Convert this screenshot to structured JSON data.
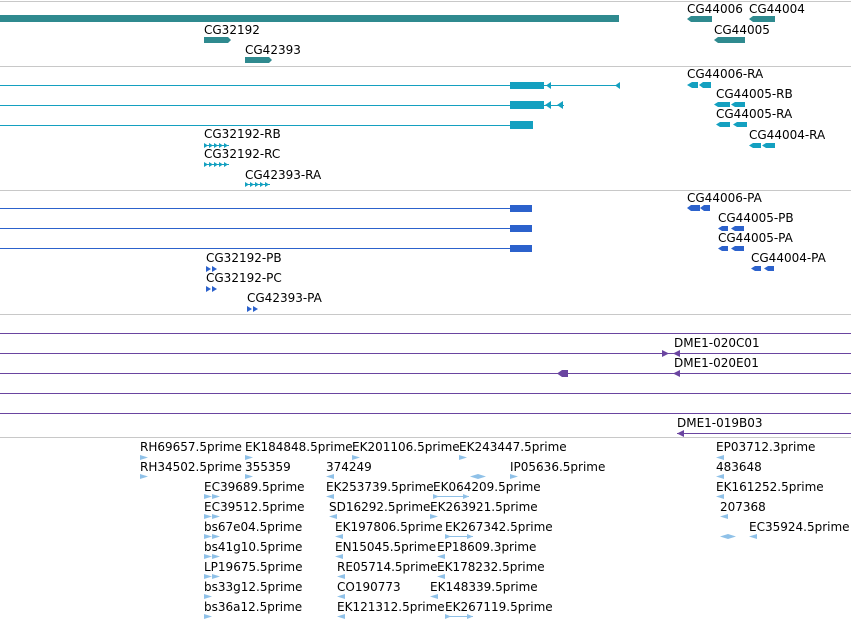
{
  "colors": {
    "gene": "#2f8a8f",
    "mrna": "#14a0c0",
    "protein": "#2c62cc",
    "clone": "#6a45a0",
    "est": "#8fc1e8",
    "separator": "#c8c8c8",
    "label": "#000000"
  },
  "tracks": {
    "genes": {
      "labels": [
        "CG32192",
        "CG42393",
        "CG44006",
        "CG44004",
        "CG44005"
      ]
    },
    "transcripts": {
      "labels": [
        "CG44006-RA",
        "CG44005-RB",
        "CG44005-RA",
        "CG44004-RA",
        "CG32192-RB",
        "CG32192-RC",
        "CG42393-RA"
      ]
    },
    "proteins": {
      "labels": [
        "CG44006-PA",
        "CG44005-PB",
        "CG44005-PA",
        "CG44004-PA",
        "CG32192-PB",
        "CG32192-PC",
        "CG42393-PA"
      ]
    },
    "clones": {
      "labels": [
        "DME1-020C01",
        "DME1-020E01",
        "DME1-019B03"
      ]
    },
    "ests": {
      "labels": [
        "RH69657.5prime",
        "EK184848.5prime",
        "EK201106.5prime",
        "EK243447.5prime",
        "EP03712.3prime",
        "RH34502.5prime",
        "355359",
        "374249",
        "IP05636.5prime",
        "483648",
        "EC39689.5prime",
        "EK253739.5prime",
        "EK064209.5prime",
        "EK161252.5prime",
        "EC39512.5prime",
        "SD16292.5prime",
        "EK263921.5prime",
        "207368",
        "bs67e04.5prime",
        "EK197806.5prime",
        "EK267342.5prime",
        "EC35924.5prime",
        "bs41g10.5prime",
        "EN15045.5prime",
        "EP18609.3prime",
        "LP19675.5prime",
        "RE05714.5prime",
        "EK178232.5prime",
        "bs33g12.5prime",
        "CO190773",
        "EK148339.5prime",
        "bs36a12.5prime",
        "EK121312.5prime",
        "EK267119.5prime"
      ]
    }
  }
}
